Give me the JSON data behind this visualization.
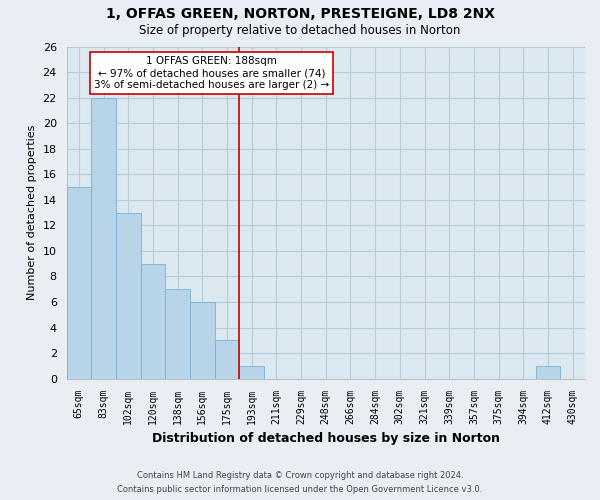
{
  "title1": "1, OFFAS GREEN, NORTON, PRESTEIGNE, LD8 2NX",
  "title2": "Size of property relative to detached houses in Norton",
  "xlabel": "Distribution of detached houses by size in Norton",
  "ylabel": "Number of detached properties",
  "bar_labels": [
    "65sqm",
    "83sqm",
    "102sqm",
    "120sqm",
    "138sqm",
    "156sqm",
    "175sqm",
    "193sqm",
    "211sqm",
    "229sqm",
    "248sqm",
    "266sqm",
    "284sqm",
    "302sqm",
    "321sqm",
    "339sqm",
    "357sqm",
    "375sqm",
    "394sqm",
    "412sqm",
    "430sqm"
  ],
  "bar_values": [
    15,
    22,
    13,
    9,
    7,
    6,
    3,
    1,
    0,
    0,
    0,
    0,
    0,
    0,
    0,
    0,
    0,
    0,
    0,
    1,
    0
  ],
  "bar_color": "#b8d4e8",
  "bar_edge_color": "#7bafd4",
  "vline_color": "#cc0000",
  "ylim": [
    0,
    26
  ],
  "yticks": [
    0,
    2,
    4,
    6,
    8,
    10,
    12,
    14,
    16,
    18,
    20,
    22,
    24,
    26
  ],
  "annotation_title": "1 OFFAS GREEN: 188sqm",
  "annotation_line1": "← 97% of detached houses are smaller (74)",
  "annotation_line2": "3% of semi-detached houses are larger (2) →",
  "annotation_box_color": "#ffffff",
  "annotation_box_edge": "#cc0000",
  "footer1": "Contains HM Land Registry data © Crown copyright and database right 2024.",
  "footer2": "Contains public sector information licensed under the Open Government Licence v3.0.",
  "bg_color": "#e8eef4",
  "plot_bg_color": "#dce8f0",
  "grid_color": "#b8ccd8"
}
